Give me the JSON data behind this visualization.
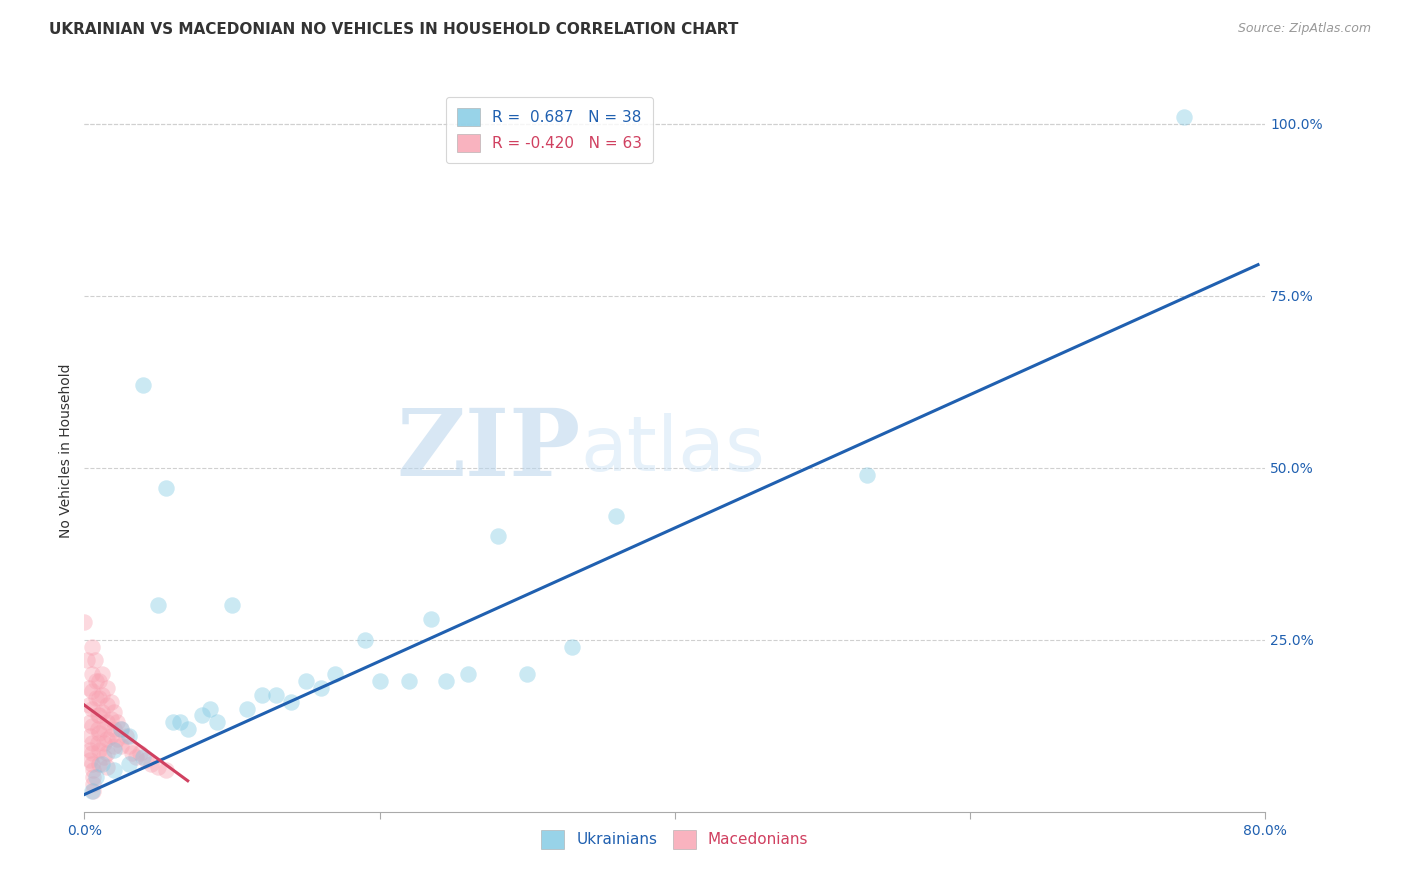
{
  "title": "UKRAINIAN VS MACEDONIAN NO VEHICLES IN HOUSEHOLD CORRELATION CHART",
  "source": "Source: ZipAtlas.com",
  "ylabel": "No Vehicles in Household",
  "xlim": [
    0.0,
    0.8
  ],
  "ylim": [
    0.0,
    1.05
  ],
  "xticks": [
    0.0,
    0.2,
    0.4,
    0.6,
    0.8
  ],
  "xticklabels": [
    "0.0%",
    "",
    "",
    "",
    "80.0%"
  ],
  "yticks": [
    0.0,
    0.25,
    0.5,
    0.75,
    1.0
  ],
  "yticklabels": [
    "",
    "25.0%",
    "50.0%",
    "75.0%",
    "100.0%"
  ],
  "watermark_zip": "ZIP",
  "watermark_atlas": "atlas",
  "blue_scatter": [
    [
      0.005,
      0.03
    ],
    [
      0.008,
      0.05
    ],
    [
      0.012,
      0.07
    ],
    [
      0.02,
      0.06
    ],
    [
      0.02,
      0.09
    ],
    [
      0.025,
      0.12
    ],
    [
      0.03,
      0.07
    ],
    [
      0.03,
      0.11
    ],
    [
      0.04,
      0.08
    ],
    [
      0.04,
      0.62
    ],
    [
      0.05,
      0.3
    ],
    [
      0.055,
      0.47
    ],
    [
      0.06,
      0.13
    ],
    [
      0.065,
      0.13
    ],
    [
      0.07,
      0.12
    ],
    [
      0.08,
      0.14
    ],
    [
      0.085,
      0.15
    ],
    [
      0.09,
      0.13
    ],
    [
      0.1,
      0.3
    ],
    [
      0.11,
      0.15
    ],
    [
      0.12,
      0.17
    ],
    [
      0.13,
      0.17
    ],
    [
      0.14,
      0.16
    ],
    [
      0.15,
      0.19
    ],
    [
      0.16,
      0.18
    ],
    [
      0.17,
      0.2
    ],
    [
      0.19,
      0.25
    ],
    [
      0.2,
      0.19
    ],
    [
      0.22,
      0.19
    ],
    [
      0.235,
      0.28
    ],
    [
      0.245,
      0.19
    ],
    [
      0.26,
      0.2
    ],
    [
      0.28,
      0.4
    ],
    [
      0.3,
      0.2
    ],
    [
      0.33,
      0.24
    ],
    [
      0.36,
      0.43
    ],
    [
      0.53,
      0.49
    ],
    [
      0.745,
      1.01
    ]
  ],
  "pink_scatter": [
    [
      0.0,
      0.275
    ],
    [
      0.002,
      0.22
    ],
    [
      0.003,
      0.18
    ],
    [
      0.003,
      0.155
    ],
    [
      0.004,
      0.13
    ],
    [
      0.004,
      0.11
    ],
    [
      0.004,
      0.09
    ],
    [
      0.004,
      0.075
    ],
    [
      0.005,
      0.24
    ],
    [
      0.005,
      0.2
    ],
    [
      0.005,
      0.175
    ],
    [
      0.005,
      0.15
    ],
    [
      0.005,
      0.125
    ],
    [
      0.005,
      0.1
    ],
    [
      0.005,
      0.085
    ],
    [
      0.005,
      0.07
    ],
    [
      0.006,
      0.06
    ],
    [
      0.006,
      0.05
    ],
    [
      0.006,
      0.04
    ],
    [
      0.006,
      0.03
    ],
    [
      0.007,
      0.22
    ],
    [
      0.008,
      0.19
    ],
    [
      0.008,
      0.165
    ],
    [
      0.009,
      0.14
    ],
    [
      0.009,
      0.12
    ],
    [
      0.009,
      0.1
    ],
    [
      0.01,
      0.19
    ],
    [
      0.01,
      0.165
    ],
    [
      0.01,
      0.14
    ],
    [
      0.01,
      0.115
    ],
    [
      0.01,
      0.09
    ],
    [
      0.01,
      0.07
    ],
    [
      0.012,
      0.2
    ],
    [
      0.012,
      0.17
    ],
    [
      0.012,
      0.145
    ],
    [
      0.013,
      0.12
    ],
    [
      0.013,
      0.1
    ],
    [
      0.013,
      0.08
    ],
    [
      0.015,
      0.18
    ],
    [
      0.015,
      0.155
    ],
    [
      0.015,
      0.13
    ],
    [
      0.015,
      0.105
    ],
    [
      0.015,
      0.085
    ],
    [
      0.015,
      0.065
    ],
    [
      0.018,
      0.16
    ],
    [
      0.018,
      0.135
    ],
    [
      0.018,
      0.11
    ],
    [
      0.02,
      0.145
    ],
    [
      0.02,
      0.12
    ],
    [
      0.02,
      0.095
    ],
    [
      0.022,
      0.13
    ],
    [
      0.022,
      0.105
    ],
    [
      0.025,
      0.12
    ],
    [
      0.025,
      0.095
    ],
    [
      0.028,
      0.11
    ],
    [
      0.03,
      0.095
    ],
    [
      0.032,
      0.085
    ],
    [
      0.035,
      0.08
    ],
    [
      0.038,
      0.085
    ],
    [
      0.042,
      0.075
    ],
    [
      0.045,
      0.07
    ],
    [
      0.05,
      0.065
    ],
    [
      0.055,
      0.06
    ]
  ],
  "blue_line_x": [
    0.0,
    0.795
  ],
  "blue_line_y": [
    0.025,
    0.795
  ],
  "pink_line_x": [
    0.0,
    0.07
  ],
  "pink_line_y": [
    0.155,
    0.045
  ],
  "scatter_size": 140,
  "scatter_alpha": 0.4,
  "blue_color": "#7ec8e3",
  "pink_color": "#f8a0b0",
  "blue_line_color": "#2060b0",
  "pink_line_color": "#d04060",
  "grid_color": "#d0d0d0",
  "background_color": "#ffffff",
  "title_fontsize": 11,
  "axis_label_fontsize": 10,
  "tick_fontsize": 10,
  "legend_fontsize": 11
}
